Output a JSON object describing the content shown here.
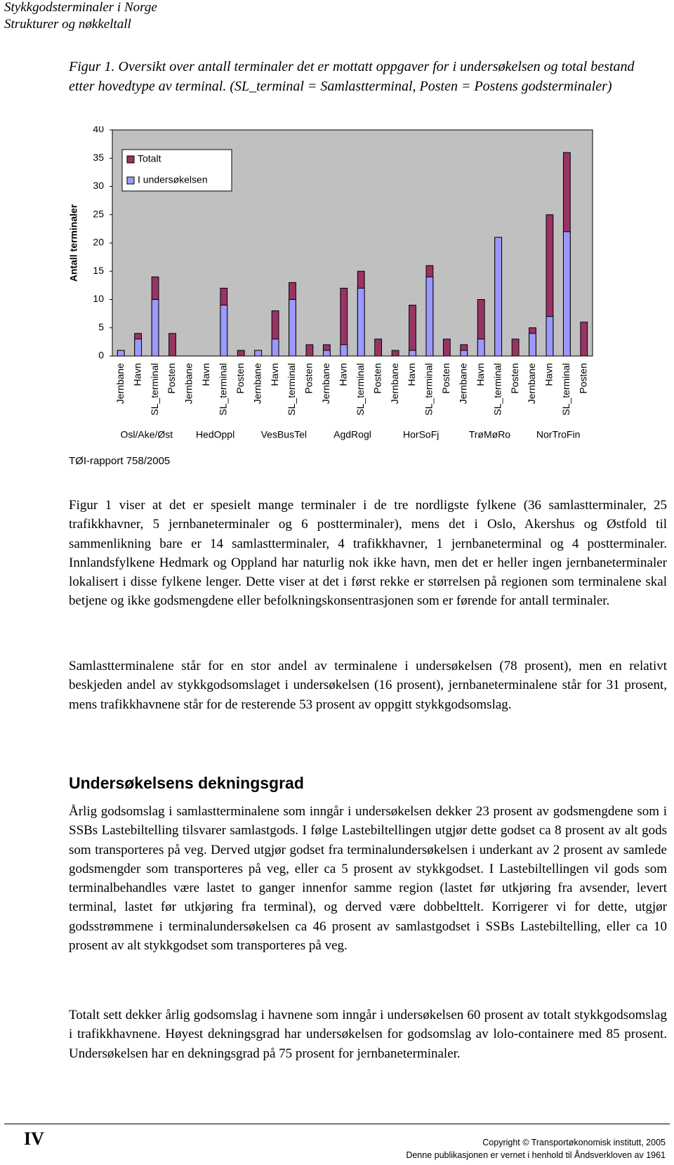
{
  "header": {
    "line1": "Stykkgodsterminaler i Norge",
    "line2": "Strukturer og nøkkeltall"
  },
  "figure": {
    "caption": "Figur 1. Oversikt over antall terminaler det er mottatt oppgaver for i undersøkelsen og total bestand etter hovedtype av terminal. (SL_terminal = Samlastterminal, Posten = Postens godsterminaler)",
    "source": "TØI-rapport 758/2005"
  },
  "chart_data": {
    "type": "bar",
    "y_label": "Antall terminaler",
    "categories": [
      "Jernbane",
      "Havn",
      "SL_terminal",
      "Posten",
      "Jernbane",
      "Havn",
      "SL_terminal",
      "Posten",
      "Jernbane",
      "Havn",
      "SL_terminal",
      "Posten",
      "Jernbane",
      "Havn",
      "SL_terminal",
      "Posten",
      "Jernbane",
      "Havn",
      "SL_terminal",
      "Posten",
      "Jernbane",
      "Havn",
      "SL_terminal",
      "Posten",
      "Jernbane",
      "Havn",
      "SL_terminal",
      "Posten"
    ],
    "groups": [
      "Osl/Ake/Øst",
      "HedOppl",
      "VesBusTel",
      "AgdRogl",
      "HorSoFj",
      "TrøMøRo",
      "NorTroFin"
    ],
    "series": [
      {
        "name": "Totalt",
        "color": "#993366",
        "values": [
          1,
          4,
          14,
          4,
          0,
          0,
          12,
          1,
          1,
          8,
          13,
          2,
          2,
          12,
          15,
          3,
          1,
          9,
          16,
          3,
          2,
          10,
          21,
          3,
          5,
          25,
          36,
          6
        ]
      },
      {
        "name": "I undersøkelsen",
        "color": "#9999ff",
        "values": [
          1,
          3,
          10,
          0,
          0,
          0,
          9,
          0,
          1,
          3,
          10,
          0,
          1,
          2,
          12,
          0,
          0,
          1,
          14,
          0,
          1,
          3,
          21,
          0,
          4,
          7,
          22,
          0
        ]
      }
    ],
    "ylim": [
      0,
      40
    ],
    "yticks": [
      0,
      5,
      10,
      15,
      20,
      25,
      30,
      35,
      40
    ],
    "grid": false,
    "legend": "top-left"
  },
  "body": {
    "paragraphs": [
      "Figur 1 viser at det er spesielt mange terminaler i de tre nordligste fylkene (36 samlastterminaler, 25 trafikkhavner, 5 jernbaneterminaler og 6 postterminaler), mens det i Oslo, Akershus og Østfold til sammenlikning bare er 14 samlastterminaler, 4 trafikkhavner, 1 jernbaneterminal og 4 postterminaler. Innlandsfylkene Hedmark og Oppland har naturlig nok ikke havn, men det er heller ingen jernbaneterminaler lokalisert i disse fylkene lenger. Dette viser at det i først rekke er størrelsen på regionen som terminalene skal betjene og ikke godsmengdene eller befolkningskonsentrasjonen som er førende for antall terminaler.",
      "Samlastterminalene står for en stor andel av terminalene i undersøkelsen (78 prosent), men en relativt beskjeden andel av stykkgodsomslaget i undersøkelsen (16 prosent), jernbaneterminalene står for 31 prosent, mens trafikkhavnene står for de resterende 53 prosent av oppgitt stykkgodsomslag."
    ]
  },
  "section": {
    "heading": "Undersøkelsens dekningsgrad",
    "paragraphs": [
      "Årlig godsomslag i samlastterminalene som inngår i undersøkelsen dekker 23 prosent av godsmengdene som i SSBs Lastebiltelling tilsvarer samlastgods. I følge Lastebiltellingen utgjør dette godset ca 8 prosent av alt gods som transporteres på veg. Derved utgjør godset fra terminalundersøkelsen i underkant av 2 prosent av samlede godsmengder som transporteres på veg, eller ca 5 prosent av stykkgodset. I Lastebiltellingen vil gods som terminalbehandles være lastet to ganger innenfor samme region (lastet før utkjøring fra avsender, levert terminal, lastet før utkjøring fra terminal), og derved være dobbelttelt. Korrigerer vi for dette, utgjør godsstrømmene i terminalundersøkelsen ca 46 prosent av samlastgodset i SSBs Lastebiltelling, eller ca 10 prosent av alt stykkgodset som transporteres på veg.",
      "Totalt sett dekker årlig godsomslag i havnene som inngår i undersøkelsen 60 prosent av totalt stykkgodsomslag i trafikkhavnene. Høyest dekningsgrad har undersøkelsen for godsomslag av lolo-containere med 85 prosent. Undersøkelsen har en dekningsgrad på 75 prosent for jernbaneterminaler."
    ]
  },
  "footer": {
    "page": "IV",
    "copyright": "Copyright © Transportøkonomisk institutt, 2005",
    "notice": "Denne publikasjonen er vernet i henhold til Åndsverkloven av 1961"
  }
}
